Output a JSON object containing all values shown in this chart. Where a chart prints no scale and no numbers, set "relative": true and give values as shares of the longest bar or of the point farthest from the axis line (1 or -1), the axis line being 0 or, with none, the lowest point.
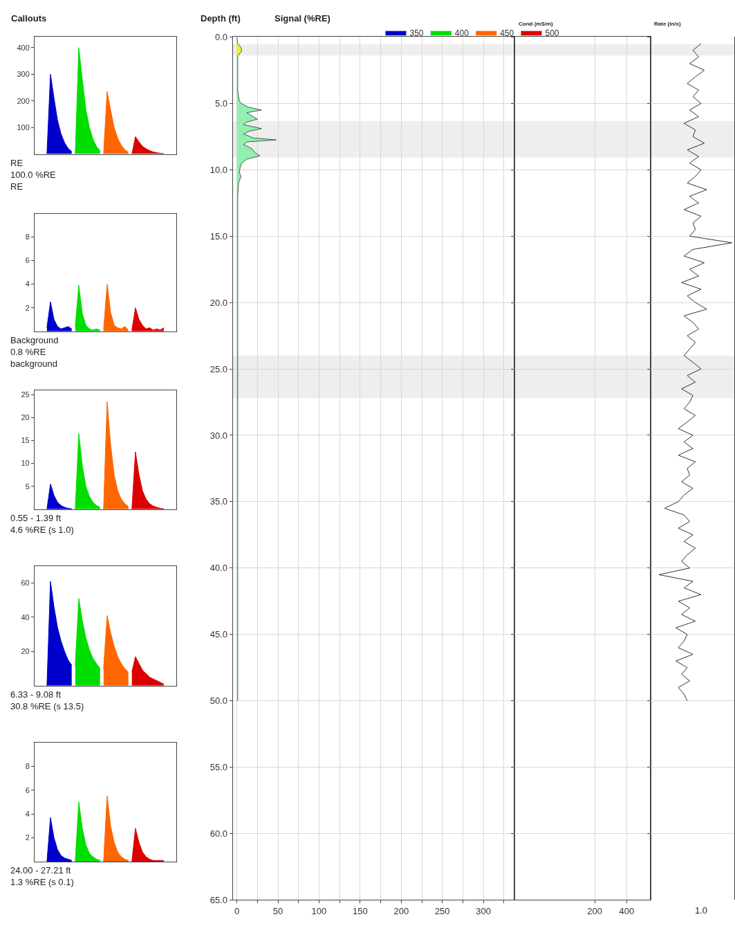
{
  "chart_data": [
    {
      "type": "area",
      "title": "Callouts",
      "categories": [
        null,
        null,
        null,
        null,
        null,
        null,
        null,
        null,
        null,
        null,
        null,
        null,
        null,
        null,
        null,
        null,
        null,
        null,
        null,
        null,
        null,
        null,
        null,
        null,
        null,
        null,
        null,
        null,
        null,
        null,
        null,
        null,
        null,
        null,
        null,
        null,
        null,
        null,
        null,
        null
      ],
      "ylim": [
        0,
        440
      ],
      "yticks": [
        100,
        200,
        300,
        400
      ],
      "annotations": [
        "RE",
        "100.0 %RE",
        "RE"
      ],
      "legend": "top right",
      "series": [
        {
          "name": "350",
          "color": "#0000cc",
          "values": [
            null,
            null,
            null,
            0,
            300,
            210,
            126,
            75,
            42,
            21,
            9,
            null,
            null,
            null,
            null,
            null,
            null,
            null,
            null,
            null,
            null,
            null,
            null,
            null,
            null,
            null,
            null,
            null,
            null,
            null,
            null,
            null,
            null,
            null,
            null,
            null,
            null,
            null,
            null,
            null
          ]
        },
        {
          "name": "400",
          "color": "#00dd00",
          "values": [
            null,
            null,
            null,
            null,
            null,
            null,
            null,
            null,
            null,
            null,
            null,
            0,
            400,
            280,
            168,
            100,
            56,
            28,
            12,
            null,
            null,
            null,
            null,
            null,
            null,
            null,
            null,
            null,
            null,
            null,
            null,
            null,
            null,
            null,
            null,
            null,
            null,
            null,
            null,
            null
          ]
        },
        {
          "name": "450",
          "color": "#ff6600",
          "values": [
            null,
            null,
            null,
            null,
            null,
            null,
            null,
            null,
            null,
            null,
            null,
            null,
            null,
            null,
            null,
            null,
            null,
            null,
            null,
            0,
            235,
            165,
            99,
            59,
            33,
            16,
            7,
            null,
            null,
            null,
            null,
            null,
            null,
            null,
            null,
            null,
            null,
            null,
            null,
            null
          ]
        },
        {
          "name": "500",
          "color": "#dd0000",
          "values": [
            null,
            null,
            null,
            null,
            null,
            null,
            null,
            null,
            null,
            null,
            null,
            null,
            null,
            null,
            null,
            null,
            null,
            null,
            null,
            null,
            null,
            null,
            null,
            null,
            null,
            null,
            null,
            0,
            65,
            46,
            29,
            20,
            13,
            8,
            5,
            3,
            2,
            null,
            null,
            null
          ]
        }
      ]
    },
    {
      "type": "area",
      "categories": [
        null,
        null,
        null,
        null,
        null,
        null,
        null,
        null,
        null,
        null,
        null,
        null,
        null,
        null,
        null,
        null,
        null,
        null,
        null,
        null,
        null,
        null,
        null,
        null,
        null,
        null,
        null,
        null,
        null,
        null,
        null,
        null,
        null,
        null,
        null,
        null,
        null,
        null,
        null,
        null
      ],
      "ylim": [
        0,
        10
      ],
      "yticks": [
        2,
        4,
        6,
        8
      ],
      "annotations": [
        "Background",
        "0.8 %RE",
        "background"
      ],
      "series": [
        {
          "color": "#0000cc",
          "values": [
            null,
            null,
            null,
            0.3,
            2.5,
            1.0,
            0.4,
            0.2,
            0.3,
            0.4,
            0.2,
            null,
            null,
            null,
            null,
            null,
            null,
            null,
            null,
            null,
            null,
            null,
            null,
            null,
            null,
            null,
            null,
            null,
            null,
            null,
            null,
            null,
            null,
            null,
            null,
            null,
            null,
            null,
            null,
            null
          ]
        },
        {
          "color": "#00dd00",
          "values": [
            null,
            null,
            null,
            null,
            null,
            null,
            null,
            null,
            null,
            null,
            null,
            0.4,
            3.9,
            1.5,
            0.5,
            0.2,
            0.1,
            0.2,
            0.1,
            null,
            null,
            null,
            null,
            null,
            null,
            null,
            null,
            null,
            null,
            null,
            null,
            null,
            null,
            null,
            null,
            null,
            null,
            null,
            null,
            null
          ]
        },
        {
          "color": "#ff6600",
          "values": [
            null,
            null,
            null,
            null,
            null,
            null,
            null,
            null,
            null,
            null,
            null,
            null,
            null,
            null,
            null,
            null,
            null,
            null,
            null,
            0.1,
            4.0,
            1.6,
            0.5,
            0.3,
            0.2,
            0.4,
            0.1,
            null,
            null,
            null,
            null,
            null,
            null,
            null,
            null,
            null,
            null,
            null,
            null,
            null
          ]
        },
        {
          "color": "#dd0000",
          "values": [
            null,
            null,
            null,
            null,
            null,
            null,
            null,
            null,
            null,
            null,
            null,
            null,
            null,
            null,
            null,
            null,
            null,
            null,
            null,
            null,
            null,
            null,
            null,
            null,
            null,
            null,
            null,
            0.1,
            2.0,
            1.0,
            0.5,
            0.2,
            0.3,
            0.1,
            0.2,
            0.1,
            0.3,
            null,
            null,
            null
          ]
        }
      ]
    },
    {
      "type": "area",
      "categories": [
        null,
        null,
        null,
        null,
        null,
        null,
        null,
        null,
        null,
        null,
        null,
        null,
        null,
        null,
        null,
        null,
        null,
        null,
        null,
        null,
        null,
        null,
        null,
        null,
        null,
        null,
        null,
        null,
        null,
        null,
        null,
        null,
        null,
        null,
        null,
        null,
        null,
        null,
        null,
        null
      ],
      "ylim": [
        0,
        26
      ],
      "yticks": [
        5,
        10,
        15,
        20,
        25
      ],
      "annotations": [
        "0.55 - 1.39 ft",
        "4.6 %RE (s 1.0)"
      ],
      "series": [
        {
          "color": "#0000cc",
          "values": [
            null,
            null,
            null,
            0,
            5.5,
            3.0,
            1.5,
            0.8,
            0.4,
            0.2,
            0.1,
            null,
            null,
            null,
            null,
            null,
            null,
            null,
            null,
            null,
            null,
            null,
            null,
            null,
            null,
            null,
            null,
            null,
            null,
            null,
            null,
            null,
            null,
            null,
            null,
            null,
            null,
            null,
            null,
            null
          ]
        },
        {
          "color": "#00dd00",
          "values": [
            null,
            null,
            null,
            null,
            null,
            null,
            null,
            null,
            null,
            null,
            null,
            0,
            16.5,
            9.5,
            5.0,
            2.8,
            1.5,
            0.8,
            0.4,
            null,
            null,
            null,
            null,
            null,
            null,
            null,
            null,
            null,
            null,
            null,
            null,
            null,
            null,
            null,
            null,
            null,
            null,
            null,
            null,
            null
          ]
        },
        {
          "color": "#ff6600",
          "values": [
            null,
            null,
            null,
            null,
            null,
            null,
            null,
            null,
            null,
            null,
            null,
            null,
            null,
            null,
            null,
            null,
            null,
            null,
            null,
            0,
            23.5,
            14.0,
            7.5,
            4.0,
            2.2,
            1.2,
            0.6,
            null,
            null,
            null,
            null,
            null,
            null,
            null,
            null,
            null,
            null,
            null,
            null,
            null
          ]
        },
        {
          "color": "#dd0000",
          "values": [
            null,
            null,
            null,
            null,
            null,
            null,
            null,
            null,
            null,
            null,
            null,
            null,
            null,
            null,
            null,
            null,
            null,
            null,
            null,
            null,
            null,
            null,
            null,
            null,
            null,
            null,
            null,
            0,
            12.5,
            7.5,
            4.0,
            2.2,
            1.2,
            0.7,
            0.4,
            0.2,
            0.1,
            null,
            null,
            null
          ]
        }
      ]
    },
    {
      "type": "area",
      "categories": [
        null,
        null,
        null,
        null,
        null,
        null,
        null,
        null,
        null,
        null,
        null,
        null,
        null,
        null,
        null,
        null,
        null,
        null,
        null,
        null,
        null,
        null,
        null,
        null,
        null,
        null,
        null,
        null,
        null,
        null,
        null,
        null,
        null,
        null,
        null,
        null,
        null,
        null,
        null,
        null
      ],
      "ylim": [
        0,
        70
      ],
      "yticks": [
        20,
        40,
        60
      ],
      "annotations": [
        "6.33 - 9.08 ft",
        "30.8 %RE (s 13.5)"
      ],
      "series": [
        {
          "color": "#0000cc",
          "values": [
            null,
            null,
            null,
            0,
            61,
            46,
            34,
            26,
            20,
            15,
            12,
            null,
            null,
            null,
            null,
            null,
            null,
            null,
            null,
            null,
            null,
            null,
            null,
            null,
            null,
            null,
            null,
            null,
            null,
            null,
            null,
            null,
            null,
            null,
            null,
            null,
            null,
            null,
            null,
            null
          ]
        },
        {
          "color": "#00dd00",
          "values": [
            null,
            null,
            null,
            null,
            null,
            null,
            null,
            null,
            null,
            null,
            null,
            12,
            51,
            38,
            28,
            21,
            16,
            13,
            10,
            null,
            null,
            null,
            null,
            null,
            null,
            null,
            null,
            null,
            null,
            null,
            null,
            null,
            null,
            null,
            null,
            null,
            null,
            null,
            null,
            null
          ]
        },
        {
          "color": "#ff6600",
          "values": [
            null,
            null,
            null,
            null,
            null,
            null,
            null,
            null,
            null,
            null,
            null,
            null,
            null,
            null,
            null,
            null,
            null,
            null,
            null,
            10,
            41,
            31,
            23,
            17,
            13,
            10,
            8,
            null,
            null,
            null,
            null,
            null,
            null,
            null,
            null,
            null,
            null,
            null,
            null,
            null
          ]
        },
        {
          "color": "#dd0000",
          "values": [
            null,
            null,
            null,
            null,
            null,
            null,
            null,
            null,
            null,
            null,
            null,
            null,
            null,
            null,
            null,
            null,
            null,
            null,
            null,
            null,
            null,
            null,
            null,
            null,
            null,
            null,
            null,
            8,
            17,
            13,
            9,
            7,
            5,
            4,
            3,
            2,
            1,
            null,
            null,
            null
          ]
        }
      ]
    },
    {
      "type": "area",
      "categories": [
        null,
        null,
        null,
        null,
        null,
        null,
        null,
        null,
        null,
        null,
        null,
        null,
        null,
        null,
        null,
        null,
        null,
        null,
        null,
        null,
        null,
        null,
        null,
        null,
        null,
        null,
        null,
        null,
        null,
        null,
        null,
        null,
        null,
        null,
        null,
        null,
        null,
        null,
        null,
        null
      ],
      "ylim": [
        0,
        10
      ],
      "yticks": [
        2,
        4,
        6,
        8
      ],
      "annotations": [
        "24.00 - 27.21 ft",
        "1.3 %RE (s 0.1)"
      ],
      "series": [
        {
          "color": "#0000cc",
          "values": [
            null,
            null,
            null,
            0,
            3.7,
            2.0,
            1.0,
            0.5,
            0.3,
            0.2,
            0.1,
            null,
            null,
            null,
            null,
            null,
            null,
            null,
            null,
            null,
            null,
            null,
            null,
            null,
            null,
            null,
            null,
            null,
            null,
            null,
            null,
            null,
            null,
            null,
            null,
            null,
            null,
            null,
            null,
            null
          ]
        },
        {
          "color": "#00dd00",
          "values": [
            null,
            null,
            null,
            null,
            null,
            null,
            null,
            null,
            null,
            null,
            null,
            0,
            5.0,
            2.8,
            1.4,
            0.7,
            0.4,
            0.2,
            0.1,
            null,
            null,
            null,
            null,
            null,
            null,
            null,
            null,
            null,
            null,
            null,
            null,
            null,
            null,
            null,
            null,
            null,
            null,
            null,
            null,
            null
          ]
        },
        {
          "color": "#ff6600",
          "values": [
            null,
            null,
            null,
            null,
            null,
            null,
            null,
            null,
            null,
            null,
            null,
            null,
            null,
            null,
            null,
            null,
            null,
            null,
            null,
            0,
            5.5,
            3.0,
            1.6,
            0.8,
            0.4,
            0.2,
            0.1,
            null,
            null,
            null,
            null,
            null,
            null,
            null,
            null,
            null,
            null,
            null,
            null,
            null
          ]
        },
        {
          "color": "#dd0000",
          "values": [
            null,
            null,
            null,
            null,
            null,
            null,
            null,
            null,
            null,
            null,
            null,
            null,
            null,
            null,
            null,
            null,
            null,
            null,
            null,
            null,
            null,
            null,
            null,
            null,
            null,
            null,
            null,
            0,
            2.8,
            1.6,
            0.8,
            0.4,
            0.2,
            0.1,
            0.1,
            0.1,
            0.1,
            null,
            null,
            null
          ]
        }
      ]
    },
    {
      "type": "area",
      "orientation": "horizontal",
      "title": "Signal (%RE)",
      "ylabel": "Depth (ft)",
      "xlim": [
        -5,
        338
      ],
      "xticks": [
        0,
        {
          "value": 25,
          "label": null
        },
        50,
        {
          "value": 75,
          "label": null
        },
        100,
        {
          "value": 125,
          "label": null
        },
        150,
        {
          "value": 175,
          "label": null
        },
        200,
        {
          "value": 225,
          "label": null
        },
        250,
        {
          "value": 275,
          "label": null
        },
        300,
        {
          "value": 325,
          "label": null
        }
      ],
      "ylim": [
        65,
        0
      ],
      "yticks": [
        {
          "value": 0,
          "label": "0.0"
        },
        {
          "value": 5,
          "label": "5.0"
        },
        {
          "value": 10,
          "label": "10.0"
        },
        {
          "value": 15,
          "label": "15.0"
        },
        {
          "value": 20,
          "label": "20.0"
        },
        {
          "value": 25,
          "label": "25.0"
        },
        {
          "value": 30,
          "label": "30.0"
        },
        {
          "value": 35,
          "label": "35.0"
        },
        {
          "value": 40,
          "label": "40.0"
        },
        {
          "value": 45,
          "label": "45.0"
        },
        {
          "value": 50,
          "label": "50.0"
        },
        {
          "value": 55,
          "label": "55.0"
        },
        {
          "value": 60,
          "label": "60.0"
        },
        {
          "value": 65,
          "label": "65.0"
        }
      ],
      "grid": true,
      "bands": [
        {
          "axis": "y",
          "from": 0.55,
          "to": 1.39,
          "color": "#eeeeee"
        },
        {
          "axis": "y",
          "from": 6.33,
          "to": 9.08,
          "color": "#eeeeee"
        },
        {
          "axis": "y",
          "from": 24.0,
          "to": 27.21,
          "color": "#eeeeee"
        }
      ],
      "series": [
        {
          "color": "#90f0b0",
          "x": [
            0,
            0.5,
            1.5,
            2,
            3,
            4,
            4.5,
            4.8,
            5.0,
            5.3,
            5.5,
            5.7,
            6.0,
            6.2,
            6.4,
            6.6,
            6.9,
            7.1,
            7.3,
            7.6,
            7.75,
            7.9,
            8.1,
            8.4,
            8.7,
            8.95,
            9.2,
            9.5,
            9.8,
            10.2,
            10.5,
            11,
            12,
            15,
            20,
            25,
            30,
            35,
            40,
            45,
            50
          ],
          "values": [
            0,
            1,
            1,
            1,
            1,
            1,
            2,
            3,
            5,
            15,
            30,
            12,
            20,
            25,
            12,
            8,
            30,
            15,
            8,
            20,
            48,
            12,
            8,
            18,
            22,
            28,
            12,
            6,
            4,
            3,
            5,
            2,
            1,
            1,
            1,
            1,
            1,
            1,
            1,
            1,
            1
          ]
        },
        {
          "color": "#f0f020",
          "x": [
            0.55,
            0.8,
            1.0,
            1.2,
            1.39
          ],
          "values": [
            2,
            5,
            6,
            4,
            2
          ]
        }
      ]
    },
    {
      "type": "line",
      "orientation": "horizontal",
      "title": "Cond (mS/m)",
      "xlim": [
        -300,
        550
      ],
      "xticks": [
        200,
        400
      ],
      "ylim": [
        65,
        0
      ],
      "yticks": [
        0.0,
        5.0,
        10.0,
        15.0,
        20.0,
        25.0,
        30.0,
        35.0,
        40.0,
        45.0,
        50.0,
        55.0,
        60.0,
        65.0
      ],
      "grid": true,
      "tick_labels": "x",
      "bands": [
        {
          "axis": "y",
          "from": 0.55,
          "to": 1.39,
          "color": "#eeeeee"
        },
        {
          "axis": "y",
          "from": 6.33,
          "to": 9.08,
          "color": "#eeeeee"
        },
        {
          "axis": "y",
          "from": 24.0,
          "to": 27.21,
          "color": "#eeeeee"
        }
      ]
    },
    {
      "type": "line",
      "orientation": "horizontal",
      "title": "Rate (in/s)",
      "relative": true,
      "annotations": [
        "1.0"
      ],
      "ylim": [
        65,
        0
      ],
      "yticks": [
        0.0,
        5.0,
        10.0,
        15.0,
        20.0,
        25.0,
        30.0,
        35.0,
        40.0,
        45.0,
        50.0,
        55.0,
        60.0,
        65.0
      ],
      "grid": true,
      "tick_labels": "x",
      "bands": [
        {
          "axis": "y",
          "from": 0.55,
          "to": 1.39,
          "color": "#eeeeee"
        },
        {
          "axis": "y",
          "from": 6.33,
          "to": 9.08,
          "color": "#eeeeee"
        },
        {
          "axis": "y",
          "from": 24.0,
          "to": 27.21,
          "color": "#eeeeee"
        }
      ],
      "series": [
        {
          "color": "#333333",
          "x": [
            0.5,
            1,
            1.5,
            2,
            2.5,
            3,
            3.5,
            4,
            4.5,
            5,
            5.5,
            6,
            6.5,
            7,
            7.5,
            8,
            8.5,
            9,
            9.5,
            10,
            10.5,
            11,
            11.5,
            12,
            12.5,
            13,
            13.5,
            14,
            14.5,
            15,
            15.5,
            16,
            16.5,
            17,
            17.5,
            18,
            18.5,
            19,
            19.5,
            20,
            20.5,
            21,
            21.5,
            22,
            22.5,
            23,
            23.5,
            24,
            24.5,
            25,
            25.5,
            26,
            26.5,
            27,
            27.5,
            28,
            28.5,
            29,
            29.5,
            30,
            30.5,
            31,
            31.5,
            32,
            32.5,
            33,
            33.5,
            34,
            34.5,
            35,
            35.5,
            36,
            36.5,
            37,
            37.5,
            38,
            38.5,
            39,
            39.5,
            40,
            40.5,
            41,
            41.5,
            42,
            42.5,
            43,
            43.5,
            44,
            44.5,
            45,
            45.5,
            46,
            46.5,
            47,
            47.5,
            48,
            48.5,
            49,
            49.5,
            50
          ],
          "values": [
            0.62,
            0.52,
            0.59,
            0.48,
            0.66,
            0.55,
            0.45,
            0.59,
            0.52,
            0.62,
            0.48,
            0.59,
            0.41,
            0.55,
            0.52,
            0.66,
            0.45,
            0.59,
            0.48,
            0.62,
            0.55,
            0.45,
            0.69,
            0.48,
            0.59,
            0.41,
            0.62,
            0.52,
            0.55,
            0.48,
            1,
            0.52,
            0.41,
            0.66,
            0.48,
            0.59,
            0.38,
            0.62,
            0.45,
            0.55,
            0.69,
            0.41,
            0.52,
            0.59,
            0.45,
            0.55,
            0.48,
            0.41,
            0.52,
            0.62,
            0.45,
            0.55,
            0.38,
            0.52,
            0.48,
            0.41,
            0.55,
            0.45,
            0.34,
            0.52,
            0.41,
            0.52,
            0.34,
            0.55,
            0.45,
            0.48,
            0.38,
            0.52,
            0.41,
            0.34,
            0.17,
            0.41,
            0.48,
            0.34,
            0.52,
            0.41,
            0.55,
            0.45,
            0.38,
            0.48,
            0.1,
            0.52,
            0.41,
            0.62,
            0.34,
            0.48,
            0.38,
            0.55,
            0.31,
            0.45,
            0.41,
            0.34,
            0.52,
            0.31,
            0.45,
            0.38,
            0.48,
            0.34,
            0.41,
            0.45
          ]
        }
      ]
    }
  ]
}
